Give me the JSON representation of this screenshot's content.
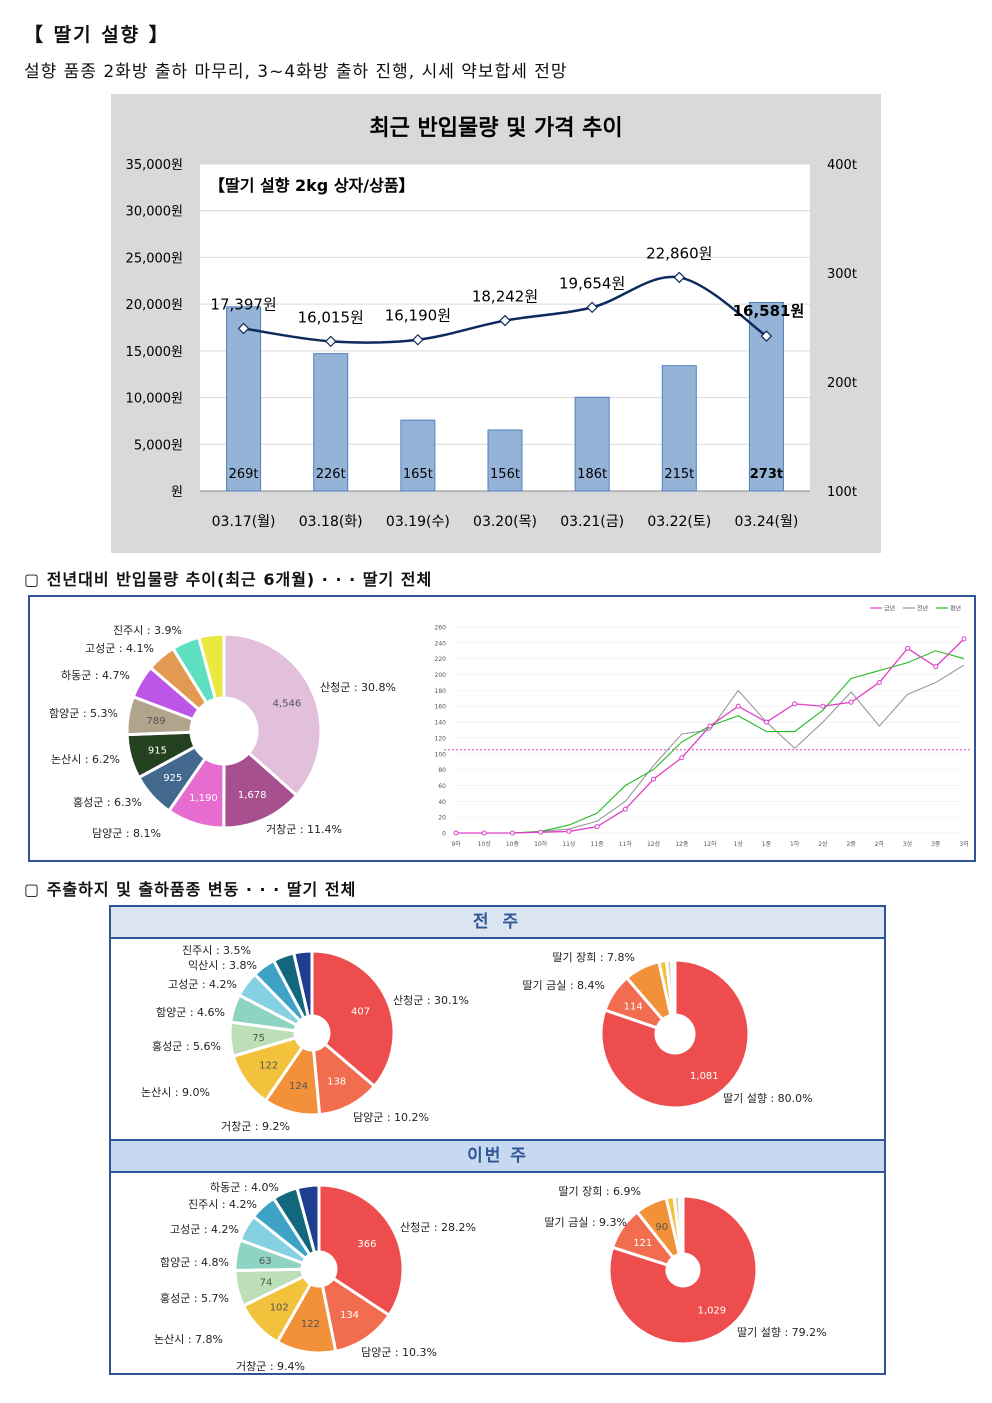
{
  "header": {
    "title": "【 딸기 설향 】",
    "subtitle": "설향 품종 2화방 출하 마무리, 3~4화방 출하 진행, 시세 약보합세 전망"
  },
  "combo_chart": {
    "title": "최근 반입물량 및 가격 추이",
    "inner_label": "【딸기 설향 2kg 상자/상품】",
    "left_ticks": [
      "원",
      "5,000원",
      "10,000원",
      "15,000원",
      "20,000원",
      "25,000원",
      "30,000원",
      "35,000원"
    ],
    "right_ticks": [
      "100t",
      "200t",
      "300t",
      "400t"
    ]
  },
  "section1": {
    "title": "▢ 전년대비 반입물량 추이(최근 6개월) · · · 딸기 전체"
  },
  "section2": {
    "title": "▢ 주출하지 및 출하품종 변동 · · · 딸기 전체",
    "last_week": "전 주",
    "this_week": "이번 주"
  },
  "line_legend": [
    "금년",
    "전년",
    "평년"
  ],
  "line_xlabels": [
    "9하",
    "10상",
    "10중",
    "10하",
    "11상",
    "11중",
    "11하",
    "12상",
    "12중",
    "12하",
    "1상",
    "1중",
    "1하",
    "2상",
    "2중",
    "2하",
    "3상",
    "3중",
    "3하"
  ],
  "line_yticks": [
    "0",
    "20",
    "40",
    "60",
    "80",
    "100",
    "120",
    "140",
    "160",
    "180",
    "200",
    "220",
    "240",
    "260"
  ],
  "chart_data": [
    {
      "type": "bar+line",
      "title": "최근 반입물량 및 가격 추이",
      "categories": [
        "03.17(월)",
        "03.18(화)",
        "03.19(수)",
        "03.20(목)",
        "03.21(금)",
        "03.22(토)",
        "03.24(월)"
      ],
      "series": [
        {
          "name": "반입물량",
          "axis": "right",
          "values": [
            269,
            226,
            165,
            156,
            186,
            215,
            273
          ],
          "labels": [
            "269t",
            "226t",
            "165t",
            "156t",
            "186t",
            "215t",
            "273t"
          ]
        },
        {
          "name": "가격",
          "axis": "left",
          "values": [
            17397,
            16015,
            16190,
            18242,
            19654,
            22860,
            16581
          ],
          "labels": [
            "17,397원",
            "16,015원",
            "16,190원",
            "18,242원",
            "19,654원",
            "22,860원",
            "16,581원"
          ]
        }
      ],
      "ylim_left": [
        0,
        35000
      ],
      "ylim_right": [
        100,
        400
      ],
      "colors": {
        "bar": "#95b3d7",
        "line": "#0d2a5c"
      }
    },
    {
      "type": "pie",
      "slices": [
        {
          "label": "산청군 : 30.8%",
          "value": 4546,
          "text": "4,546",
          "color": "#e2bfdb"
        },
        {
          "label": "거창군 : 11.4%",
          "value": 1678,
          "text": "1,678",
          "color": "#a8508f"
        },
        {
          "label": "담양군 : 8.1%",
          "value": 1190,
          "text": "1,190",
          "color": "#e76ccf"
        },
        {
          "label": "홍성군 : 6.3%",
          "value": 925,
          "text": "925",
          "color": "#44698f"
        },
        {
          "label": "논산시 : 6.2%",
          "value": 915,
          "text": "915",
          "color": "#23401f"
        },
        {
          "label": "함양군 : 5.3%",
          "value": 789,
          "text": "789",
          "color": "#b0a48b"
        },
        {
          "label": "하동군 : 4.7%",
          "value": 694,
          "text": "",
          "color": "#bd55e6"
        },
        {
          "label": "고성군 : 4.1%",
          "value": 605,
          "text": "",
          "color": "#e29a52"
        },
        {
          "label": "진주시 : 3.9%",
          "value": 576,
          "text": "",
          "color": "#5de0c0"
        },
        {
          "label": "",
          "value": 520,
          "text": "",
          "color": "#e9e93f"
        }
      ]
    },
    {
      "type": "line",
      "x": [
        "9하",
        "10상",
        "10중",
        "10하",
        "11상",
        "11중",
        "11하",
        "12상",
        "12중",
        "12하",
        "1상",
        "1중",
        "1하",
        "2상",
        "2중",
        "2하",
        "3상",
        "3중",
        "3하"
      ],
      "series": [
        {
          "name": "금년",
          "color": "#e040c8",
          "values": [
            0,
            0,
            0,
            1,
            2,
            8,
            30,
            68,
            95,
            135,
            160,
            140,
            163,
            160,
            165,
            190,
            233,
            210,
            245
          ]
        },
        {
          "name": "전년",
          "color": "#999999",
          "values": [
            0,
            0,
            0,
            2,
            5,
            15,
            40,
            85,
            125,
            130,
            180,
            140,
            107,
            140,
            178,
            135,
            175,
            190,
            212
          ]
        },
        {
          "name": "평년",
          "color": "#22bb22",
          "values": [
            0,
            0,
            0,
            2,
            10,
            25,
            60,
            80,
            115,
            135,
            148,
            128,
            128,
            155,
            195,
            205,
            215,
            230,
            220
          ]
        }
      ],
      "reference": 105,
      "ylim": [
        0,
        260
      ]
    },
    {
      "type": "pie",
      "group": "전 주",
      "slices": [
        {
          "label": "산청군 : 30.1%",
          "value": 407,
          "text": "407",
          "color": "#ee4d4d"
        },
        {
          "label": "담양군 : 10.2%",
          "value": 138,
          "text": "138",
          "color": "#f26d50"
        },
        {
          "label": "거창군 : 9.2%",
          "value": 124,
          "text": "124",
          "color": "#f3913a"
        },
        {
          "label": "논산시 : 9.0%",
          "value": 122,
          "text": "122",
          "color": "#f2c23c"
        },
        {
          "label": "홍성군 : 5.6%",
          "value": 75,
          "text": "75",
          "color": "#bcdfb8"
        },
        {
          "label": "함양군 : 4.6%",
          "value": 62,
          "text": "",
          "color": "#8fd3c2"
        },
        {
          "label": "고성군 : 4.2%",
          "value": 57,
          "text": "",
          "color": "#86d0e4"
        },
        {
          "label": "익산시 : 3.8%",
          "value": 51,
          "text": "",
          "color": "#3ea1c6"
        },
        {
          "label": "진주시 : 3.5%",
          "value": 47,
          "text": "",
          "color": "#13677c"
        },
        {
          "label": "",
          "value": 40,
          "text": "",
          "color": "#1f3e8f"
        }
      ]
    },
    {
      "type": "pie",
      "group": "전 주",
      "slices": [
        {
          "label": "딸기 설향 : 80.0%",
          "value": 1081,
          "text": "1,081",
          "color": "#ee4d4d"
        },
        {
          "label": "딸기 금실 : 8.4%",
          "value": 114,
          "text": "114",
          "color": "#f26d50"
        },
        {
          "label": "딸기 장희 : 7.8%",
          "value": 105,
          "text": "",
          "color": "#f3913a"
        },
        {
          "label": "",
          "value": 22,
          "text": "",
          "color": "#f2c23c"
        },
        {
          "label": "",
          "value": 15,
          "text": "",
          "color": "#d8d0b8"
        },
        {
          "label": "",
          "value": 10,
          "text": "",
          "color": "#bcdfb8"
        }
      ]
    },
    {
      "type": "pie",
      "group": "이번 주",
      "slices": [
        {
          "label": "산청군 : 28.2%",
          "value": 366,
          "text": "366",
          "color": "#ee4d4d"
        },
        {
          "label": "담양군 : 10.3%",
          "value": 134,
          "text": "134",
          "color": "#f26d50"
        },
        {
          "label": "거창군 : 9.4%",
          "value": 122,
          "text": "122",
          "color": "#f3913a"
        },
        {
          "label": "논산시 : 7.8%",
          "value": 102,
          "text": "102",
          "color": "#f2c23c"
        },
        {
          "label": "홍성군 : 5.7%",
          "value": 74,
          "text": "74",
          "color": "#bcdfb8"
        },
        {
          "label": "함양군 : 4.8%",
          "value": 63,
          "text": "63",
          "color": "#8fd3c2"
        },
        {
          "label": "고성군 : 4.2%",
          "value": 55,
          "text": "",
          "color": "#86d0e4"
        },
        {
          "label": "진주시 : 4.2%",
          "value": 55,
          "text": "",
          "color": "#3ea1c6"
        },
        {
          "label": "하동군 : 4.0%",
          "value": 52,
          "text": "",
          "color": "#13677c"
        },
        {
          "label": "",
          "value": 45,
          "text": "",
          "color": "#1f3e8f"
        }
      ]
    },
    {
      "type": "pie",
      "group": "이번 주",
      "slices": [
        {
          "label": "딸기 설향 : 79.2%",
          "value": 1029,
          "text": "1,029",
          "color": "#ee4d4d"
        },
        {
          "label": "딸기 금실 : 9.3%",
          "value": 121,
          "text": "121",
          "color": "#f26d50"
        },
        {
          "label": "딸기 장희 : 6.9%",
          "value": 90,
          "text": "90",
          "color": "#f3913a"
        },
        {
          "label": "",
          "value": 22,
          "text": "",
          "color": "#f2c23c"
        },
        {
          "label": "",
          "value": 15,
          "text": "",
          "color": "#d8d0b8"
        },
        {
          "label": "",
          "value": 10,
          "text": "",
          "color": "#bcdfb8"
        }
      ]
    }
  ]
}
